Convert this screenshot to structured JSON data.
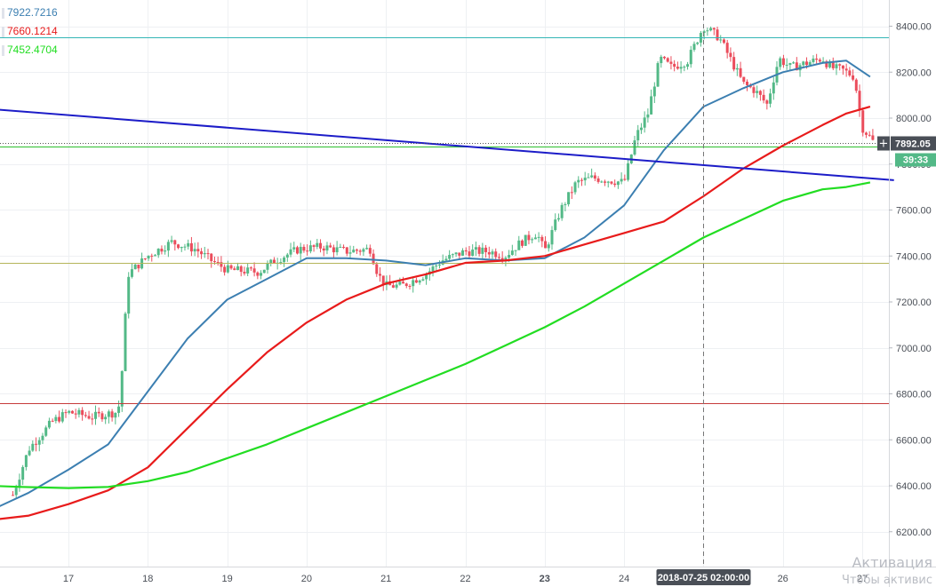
{
  "legend": [
    {
      "value": "7922.7216",
      "color": "#3c7fb1"
    },
    {
      "value": "7660.1214",
      "color": "#e81b1b"
    },
    {
      "value": "7452.4704",
      "color": "#22dd22"
    }
  ],
  "price_label": {
    "value": "7892.05",
    "plus": "+"
  },
  "countdown_label": "39:33",
  "crosshair_date_label": "2018-07-25 02:00:00",
  "watermark": {
    "line1": "Активация",
    "line2": "Чтобы активис"
  },
  "chart_data": {
    "type": "candlestick",
    "title": "",
    "x_axis": {
      "ticks": [
        "17",
        "18",
        "19",
        "20",
        "21",
        "22",
        "23",
        "24",
        "26",
        "27"
      ],
      "bold_ticks": [
        "23"
      ],
      "hidden_tick_under_crosshair": "25"
    },
    "y_axis": {
      "ticks": [
        "6200.00",
        "6400.00",
        "6600.00",
        "6800.00",
        "7000.00",
        "7200.00",
        "7400.00",
        "7600.00",
        "7800.00",
        "8000.00",
        "8200.00",
        "8400.00"
      ],
      "range": [
        6140,
        8500
      ],
      "position": "right"
    },
    "grid": true,
    "colors": {
      "up": "#53b987",
      "down": "#eb4d5c",
      "ma_fast": "#3c7fb1",
      "ma_mid": "#e81b1b",
      "ma_slow": "#22dd22",
      "trendline": "#1c1cc8"
    },
    "close_path": [
      [
        16.3,
        6360
      ],
      [
        16.5,
        6560
      ],
      [
        16.8,
        6680
      ],
      [
        17.0,
        6720
      ],
      [
        17.3,
        6700
      ],
      [
        17.6,
        6720
      ],
      [
        17.65,
        6760
      ],
      [
        17.75,
        7320
      ],
      [
        18.0,
        7400
      ],
      [
        18.3,
        7460
      ],
      [
        18.6,
        7430
      ],
      [
        18.8,
        7380
      ],
      [
        19.0,
        7340
      ],
      [
        19.4,
        7330
      ],
      [
        19.6,
        7380
      ],
      [
        19.9,
        7430
      ],
      [
        20.2,
        7440
      ],
      [
        20.5,
        7420
      ],
      [
        20.8,
        7430
      ],
      [
        20.9,
        7320
      ],
      [
        21.0,
        7270
      ],
      [
        21.2,
        7270
      ],
      [
        21.5,
        7320
      ],
      [
        21.7,
        7380
      ],
      [
        22.0,
        7420
      ],
      [
        22.3,
        7420
      ],
      [
        22.5,
        7400
      ],
      [
        22.7,
        7460
      ],
      [
        22.9,
        7500
      ],
      [
        23.0,
        7420
      ],
      [
        23.2,
        7600
      ],
      [
        23.4,
        7720
      ],
      [
        23.6,
        7740
      ],
      [
        23.8,
        7730
      ],
      [
        24.0,
        7720
      ],
      [
        24.15,
        7920
      ],
      [
        24.3,
        8020
      ],
      [
        24.45,
        8260
      ],
      [
        24.6,
        8220
      ],
      [
        24.8,
        8250
      ],
      [
        25.0,
        8400
      ],
      [
        25.2,
        8350
      ],
      [
        25.35,
        8250
      ],
      [
        25.5,
        8150
      ],
      [
        25.65,
        8120
      ],
      [
        25.8,
        8060
      ],
      [
        25.95,
        8260
      ],
      [
        26.1,
        8220
      ],
      [
        26.3,
        8240
      ],
      [
        26.5,
        8260
      ],
      [
        26.6,
        8220
      ],
      [
        26.75,
        8210
      ],
      [
        26.9,
        8180
      ],
      [
        27.0,
        7960
      ],
      [
        27.15,
        7892
      ]
    ],
    "series": [
      {
        "name": "7922.7216",
        "type": "line",
        "x": [
          16.0,
          16.5,
          17.0,
          17.5,
          18.0,
          18.5,
          19.0,
          19.5,
          20.0,
          20.5,
          21.0,
          21.5,
          22.0,
          22.5,
          23.0,
          23.5,
          24.0,
          24.5,
          25.0,
          25.5,
          26.0,
          26.5,
          26.8,
          27.1
        ],
        "y": [
          6290,
          6370,
          6470,
          6580,
          6810,
          7040,
          7210,
          7300,
          7390,
          7390,
          7380,
          7360,
          7390,
          7380,
          7390,
          7480,
          7620,
          7860,
          8050,
          8130,
          8200,
          8240,
          8250,
          8180
        ]
      },
      {
        "name": "7660.1214",
        "type": "line",
        "x": [
          16.0,
          16.5,
          17.0,
          17.5,
          18.0,
          18.5,
          19.0,
          19.5,
          20.0,
          20.5,
          21.0,
          21.5,
          22.0,
          22.5,
          23.0,
          23.5,
          24.0,
          24.5,
          25.0,
          25.5,
          26.0,
          26.5,
          26.8,
          27.1
        ],
        "y": [
          6250,
          6270,
          6320,
          6380,
          6480,
          6650,
          6820,
          6980,
          7110,
          7210,
          7280,
          7320,
          7370,
          7380,
          7400,
          7450,
          7500,
          7550,
          7660,
          7780,
          7880,
          7970,
          8020,
          8050
        ]
      },
      {
        "name": "7452.4704",
        "type": "line",
        "x": [
          16.0,
          16.4,
          17.0,
          17.5,
          18.0,
          18.5,
          19.0,
          19.5,
          20.0,
          20.5,
          21.0,
          21.5,
          22.0,
          22.5,
          23.0,
          23.5,
          24.0,
          24.5,
          25.0,
          25.5,
          26.0,
          26.5,
          26.8,
          27.1
        ],
        "y": [
          6400,
          6395,
          6390,
          6395,
          6420,
          6460,
          6520,
          6580,
          6650,
          6720,
          6790,
          6860,
          6930,
          7010,
          7090,
          7180,
          7280,
          7380,
          7480,
          7560,
          7640,
          7690,
          7700,
          7720
        ]
      },
      {
        "type": "trendline",
        "x": [
          16.0,
          27.4
        ],
        "y": [
          8040,
          7730
        ]
      }
    ],
    "horizontal_lines": [
      {
        "y": 8350,
        "color": "#33b6b6"
      },
      {
        "y": 7875,
        "color": "#2fbf2f"
      },
      {
        "y": 7370,
        "color": "#b5b55a"
      },
      {
        "y": 6760,
        "color": "#c63b3b"
      }
    ],
    "crosshair": {
      "x": 25.0,
      "y": 7892
    }
  }
}
